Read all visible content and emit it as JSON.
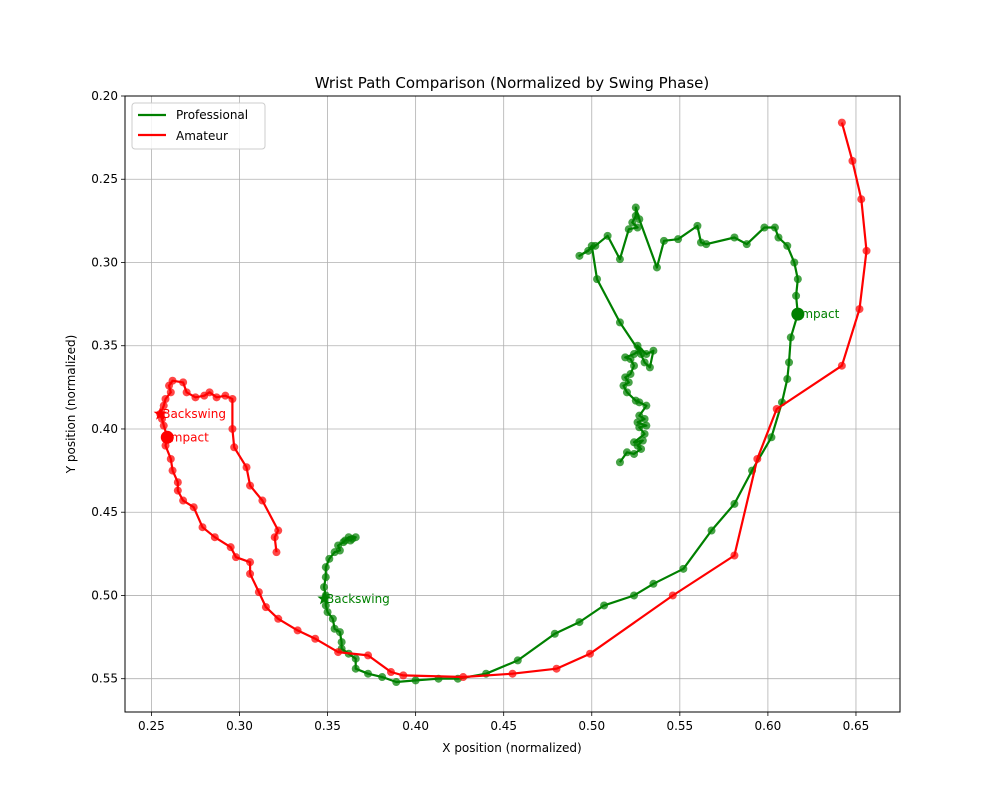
{
  "chart_data": {
    "type": "line",
    "title": "Wrist Path Comparison (Normalized by Swing Phase)",
    "xlabel": "X position (normalized)",
    "ylabel": "Y position (normalized)",
    "xlim": [
      0.235,
      0.675
    ],
    "ylim": [
      0.57,
      0.2
    ],
    "y_inverted": true,
    "grid": true,
    "legend_position": "top-left",
    "xticks": [
      "0.25",
      "0.30",
      "0.35",
      "0.40",
      "0.45",
      "0.50",
      "0.55",
      "0.60",
      "0.65"
    ],
    "yticks": [
      "0.20",
      "0.25",
      "0.30",
      "0.35",
      "0.40",
      "0.45",
      "0.50",
      "0.55"
    ],
    "series": [
      {
        "name": "Professional",
        "color": "#008000",
        "points": [
          [
            0.516,
            0.42
          ],
          [
            0.52,
            0.414
          ],
          [
            0.524,
            0.415
          ],
          [
            0.528,
            0.412
          ],
          [
            0.526,
            0.41
          ],
          [
            0.529,
            0.407
          ],
          [
            0.524,
            0.408
          ],
          [
            0.53,
            0.403
          ],
          [
            0.527,
            0.399
          ],
          [
            0.531,
            0.398
          ],
          [
            0.526,
            0.396
          ],
          [
            0.53,
            0.394
          ],
          [
            0.527,
            0.392
          ],
          [
            0.531,
            0.386
          ],
          [
            0.527,
            0.384
          ],
          [
            0.525,
            0.383
          ],
          [
            0.52,
            0.378
          ],
          [
            0.518,
            0.374
          ],
          [
            0.521,
            0.372
          ],
          [
            0.519,
            0.369
          ],
          [
            0.522,
            0.367
          ],
          [
            0.524,
            0.362
          ],
          [
            0.522,
            0.358
          ],
          [
            0.519,
            0.357
          ],
          [
            0.524,
            0.355
          ],
          [
            0.527,
            0.353
          ],
          [
            0.53,
            0.36
          ],
          [
            0.533,
            0.363
          ],
          [
            0.535,
            0.353
          ],
          [
            0.531,
            0.355
          ],
          [
            0.526,
            0.35
          ],
          [
            0.528,
            0.355
          ],
          [
            0.516,
            0.336
          ],
          [
            0.503,
            0.31
          ],
          [
            0.5,
            0.29
          ],
          [
            0.498,
            0.293
          ],
          [
            0.493,
            0.296
          ],
          [
            0.502,
            0.29
          ],
          [
            0.509,
            0.284
          ],
          [
            0.516,
            0.298
          ],
          [
            0.521,
            0.28
          ],
          [
            0.526,
            0.279
          ],
          [
            0.523,
            0.276
          ],
          [
            0.525,
            0.272
          ],
          [
            0.525,
            0.267
          ],
          [
            0.527,
            0.274
          ],
          [
            0.537,
            0.303
          ],
          [
            0.541,
            0.287
          ],
          [
            0.549,
            0.286
          ],
          [
            0.56,
            0.278
          ],
          [
            0.562,
            0.288
          ],
          [
            0.565,
            0.289
          ],
          [
            0.581,
            0.285
          ],
          [
            0.588,
            0.289
          ],
          [
            0.598,
            0.279
          ],
          [
            0.604,
            0.279
          ],
          [
            0.606,
            0.285
          ],
          [
            0.611,
            0.29
          ],
          [
            0.615,
            0.3
          ],
          [
            0.617,
            0.31
          ],
          [
            0.616,
            0.32
          ],
          [
            0.617,
            0.331
          ],
          [
            0.613,
            0.345
          ],
          [
            0.612,
            0.36
          ],
          [
            0.611,
            0.37
          ],
          [
            0.608,
            0.384
          ],
          [
            0.602,
            0.405
          ],
          [
            0.591,
            0.425
          ],
          [
            0.581,
            0.445
          ],
          [
            0.568,
            0.461
          ],
          [
            0.552,
            0.484
          ],
          [
            0.535,
            0.493
          ],
          [
            0.524,
            0.5
          ],
          [
            0.507,
            0.506
          ],
          [
            0.493,
            0.516
          ],
          [
            0.479,
            0.523
          ],
          [
            0.458,
            0.539
          ],
          [
            0.44,
            0.547
          ],
          [
            0.424,
            0.55
          ],
          [
            0.413,
            0.55
          ],
          [
            0.4,
            0.551
          ],
          [
            0.389,
            0.552
          ],
          [
            0.381,
            0.549
          ],
          [
            0.373,
            0.547
          ],
          [
            0.366,
            0.544
          ],
          [
            0.366,
            0.538
          ],
          [
            0.362,
            0.535
          ],
          [
            0.358,
            0.532
          ],
          [
            0.358,
            0.528
          ],
          [
            0.357,
            0.522
          ],
          [
            0.354,
            0.52
          ],
          [
            0.353,
            0.514
          ],
          [
            0.35,
            0.51
          ],
          [
            0.349,
            0.506
          ],
          [
            0.349,
            0.5
          ],
          [
            0.348,
            0.495
          ],
          [
            0.349,
            0.489
          ],
          [
            0.349,
            0.483
          ],
          [
            0.351,
            0.478
          ],
          [
            0.354,
            0.474
          ],
          [
            0.357,
            0.473
          ],
          [
            0.356,
            0.47
          ],
          [
            0.359,
            0.468
          ],
          [
            0.36,
            0.467
          ],
          [
            0.362,
            0.465
          ],
          [
            0.366,
            0.465
          ],
          [
            0.364,
            0.466
          ],
          [
            0.363,
            0.467
          ]
        ],
        "markers": {
          "impact": {
            "x": 0.617,
            "y": 0.331,
            "label": "Impact"
          },
          "backswing": {
            "x": 0.348,
            "y": 0.502,
            "label": "Backswing"
          }
        }
      },
      {
        "name": "Amateur",
        "color": "#ff0000",
        "points": [
          [
            0.642,
            0.216
          ],
          [
            0.648,
            0.239
          ],
          [
            0.653,
            0.262
          ],
          [
            0.656,
            0.293
          ],
          [
            0.652,
            0.328
          ],
          [
            0.642,
            0.362
          ],
          [
            0.605,
            0.388
          ],
          [
            0.594,
            0.418
          ],
          [
            0.581,
            0.476
          ],
          [
            0.546,
            0.5
          ],
          [
            0.499,
            0.535
          ],
          [
            0.48,
            0.544
          ],
          [
            0.455,
            0.547
          ],
          [
            0.427,
            0.549
          ],
          [
            0.393,
            0.548
          ],
          [
            0.386,
            0.546
          ],
          [
            0.373,
            0.536
          ],
          [
            0.356,
            0.534
          ],
          [
            0.343,
            0.526
          ],
          [
            0.333,
            0.521
          ],
          [
            0.322,
            0.514
          ],
          [
            0.315,
            0.507
          ],
          [
            0.311,
            0.498
          ],
          [
            0.306,
            0.487
          ],
          [
            0.306,
            0.48
          ],
          [
            0.298,
            0.477
          ],
          [
            0.295,
            0.471
          ],
          [
            0.286,
            0.465
          ],
          [
            0.279,
            0.459
          ],
          [
            0.274,
            0.447
          ],
          [
            0.268,
            0.443
          ],
          [
            0.265,
            0.437
          ],
          [
            0.265,
            0.432
          ],
          [
            0.262,
            0.425
          ],
          [
            0.261,
            0.418
          ],
          [
            0.258,
            0.41
          ],
          [
            0.259,
            0.405
          ],
          [
            0.257,
            0.398
          ],
          [
            0.256,
            0.394
          ],
          [
            0.255,
            0.391
          ],
          [
            0.257,
            0.386
          ],
          [
            0.258,
            0.382
          ],
          [
            0.261,
            0.378
          ],
          [
            0.26,
            0.374
          ],
          [
            0.262,
            0.371
          ],
          [
            0.268,
            0.372
          ],
          [
            0.27,
            0.378
          ],
          [
            0.275,
            0.381
          ],
          [
            0.28,
            0.38
          ],
          [
            0.283,
            0.378
          ],
          [
            0.287,
            0.381
          ],
          [
            0.292,
            0.38
          ],
          [
            0.296,
            0.382
          ],
          [
            0.296,
            0.4
          ],
          [
            0.297,
            0.411
          ],
          [
            0.304,
            0.423
          ],
          [
            0.306,
            0.434
          ],
          [
            0.313,
            0.443
          ],
          [
            0.322,
            0.461
          ],
          [
            0.32,
            0.465
          ],
          [
            0.321,
            0.474
          ]
        ],
        "markers": {
          "impact": {
            "x": 0.259,
            "y": 0.405,
            "label": "Impact"
          },
          "backswing": {
            "x": 0.255,
            "y": 0.391,
            "label": "Backswing"
          }
        }
      }
    ]
  }
}
